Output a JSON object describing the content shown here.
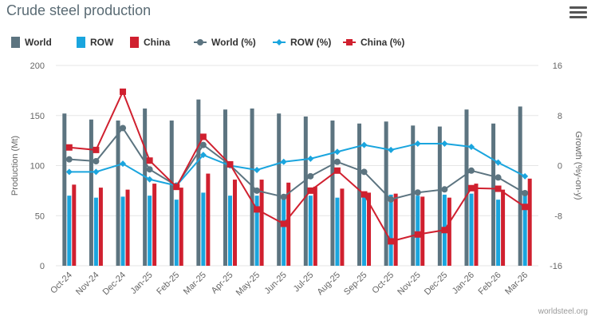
{
  "header": {
    "title": "Crude steel production",
    "menu_icon": "hamburger-menu-icon"
  },
  "credit": "worldsteel.org",
  "colors": {
    "world": "#5c7480",
    "row": "#1aa5de",
    "china": "#d0202f",
    "grid": "#e6e6e6"
  },
  "chart_data": {
    "type": "bar",
    "title": "Crude steel production",
    "categories": [
      "Oct-24",
      "Nov-24",
      "Dec-24",
      "Jan-25",
      "Feb-25",
      "Mar-25",
      "Apr-25",
      "May-25",
      "Jun-25",
      "Jul-25",
      "Aug-25",
      "Sep-25",
      "Oct-25",
      "Nov-25",
      "Dec-25",
      "Jan-26",
      "Feb-26",
      "Mar-26"
    ],
    "ylabel": "Production (Mt)",
    "ylim": [
      0,
      200
    ],
    "yticks": [
      0,
      50,
      100,
      150,
      200
    ],
    "y2label": "Growth (%y-on-y)",
    "y2lim": [
      -16,
      16
    ],
    "y2ticks": [
      -16,
      -8,
      0,
      8,
      16
    ],
    "legend_position": "top",
    "grid": true,
    "series": [
      {
        "name": "World",
        "kind": "bar",
        "axis": "left",
        "values": [
          152,
          146,
          145,
          157,
          145,
          166,
          156,
          157,
          152,
          149,
          145,
          142,
          144,
          140,
          139,
          156,
          142,
          159
        ]
      },
      {
        "name": "ROW",
        "kind": "bar",
        "axis": "left",
        "values": [
          70,
          68,
          69,
          70,
          66,
          73,
          70,
          70,
          70,
          70,
          68,
          70,
          71,
          70,
          71,
          72,
          66,
          73
        ]
      },
      {
        "name": "China",
        "kind": "bar",
        "axis": "left",
        "values": [
          81,
          78,
          76,
          82,
          78,
          92,
          86,
          86,
          83,
          79,
          77,
          73,
          72,
          69,
          68,
          82,
          76,
          87
        ]
      },
      {
        "name": "World (%)",
        "kind": "line",
        "axis": "right",
        "values": [
          1.0,
          0.7,
          6.0,
          -0.6,
          -3.2,
          3.3,
          0.1,
          -4.0,
          -5.0,
          -1.7,
          0.6,
          -1.0,
          -5.4,
          -4.3,
          -3.8,
          -0.8,
          -1.9,
          -4.4
        ]
      },
      {
        "name": "ROW (%)",
        "kind": "line",
        "axis": "right",
        "values": [
          -1.0,
          -1.0,
          0.3,
          -2.2,
          -3.2,
          1.7,
          0.0,
          -0.7,
          0.6,
          1.1,
          2.2,
          3.3,
          2.5,
          3.5,
          3.5,
          3.0,
          0.5,
          -1.7
        ]
      },
      {
        "name": "China (%)",
        "kind": "line",
        "axis": "right",
        "values": [
          2.9,
          2.5,
          11.8,
          0.8,
          -3.4,
          4.6,
          0.2,
          -7.0,
          -9.3,
          -4.0,
          -0.8,
          -4.6,
          -12.1,
          -11.0,
          -10.3,
          -3.6,
          -3.7,
          -6.6
        ]
      }
    ]
  }
}
